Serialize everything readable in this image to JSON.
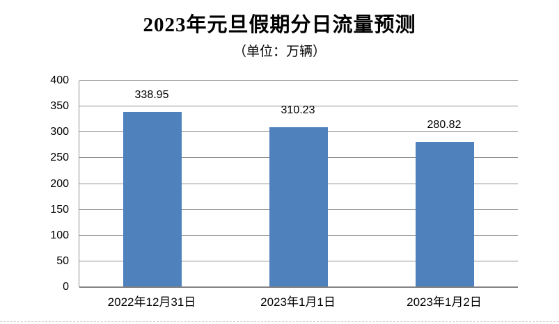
{
  "chart_data": {
    "type": "bar",
    "title": "2023年元旦假期分日流量预测",
    "subtitle": "（单位：万辆）",
    "categories": [
      "2022年12月31日",
      "2023年1月1日",
      "2023年1月2日"
    ],
    "values": [
      338.95,
      310.23,
      280.82
    ],
    "data_labels": [
      "338.95",
      "310.23",
      "280.82"
    ],
    "ylabel": "",
    "xlabel": "",
    "ylim": [
      0,
      400
    ],
    "ytick_step": 50,
    "yticks": [
      0,
      50,
      100,
      150,
      200,
      250,
      300,
      350,
      400
    ],
    "grid": true,
    "legend_position": "none",
    "colors": {
      "bar_fill": "#4f81bd",
      "gridline": "#8e8e8e",
      "axis_line": "#848484",
      "text": "#000000",
      "background": "#ffffff",
      "bottom_divider": "#d4d4d4"
    }
  }
}
